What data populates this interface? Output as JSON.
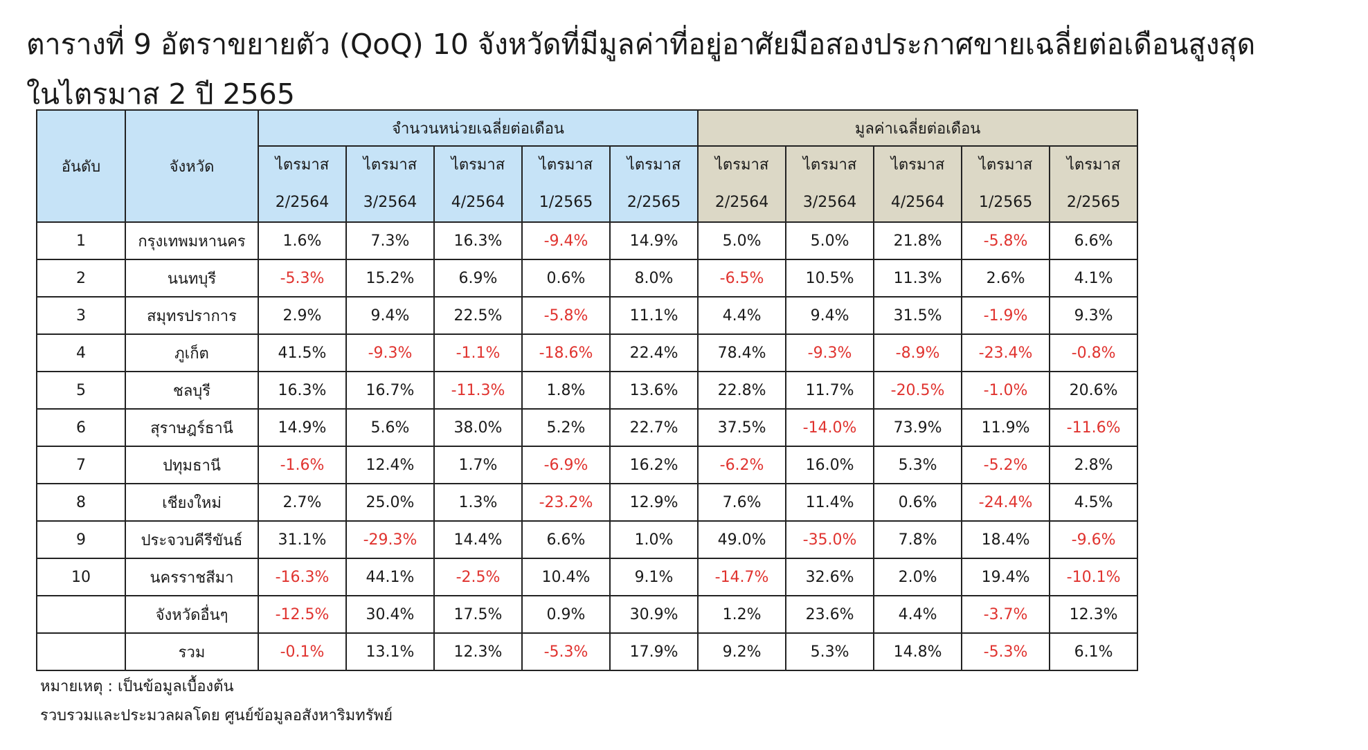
{
  "title": {
    "line1": "ตารางที่ 9 อัตราขยายตัว (QoQ) 10 จังหวัดที่มีมูลค่าที่อยู่อาศัยมือสองประกาศขายเฉลี่ยต่อเดือนสูงสุด",
    "line2": "ในไตรมาส 2 ปี 2565"
  },
  "table": {
    "rank_header": "อันดับ",
    "province_header": "จังหวัด",
    "group_units": "จำนวนหน่วยเฉลี่ยต่อเดือน",
    "group_value": "มูลค่าเฉลี่ยต่อเดือน",
    "quarter_label": "ไตรมาส",
    "quarters": [
      "2/2564",
      "3/2564",
      "4/2564",
      "1/2565",
      "2/2565"
    ],
    "rows": [
      {
        "rank": "1",
        "province": "กรุงเทพมหานคร",
        "units": [
          "1.6%",
          "7.3%",
          "16.3%",
          "-9.4%",
          "14.9%"
        ],
        "value": [
          "5.0%",
          "5.0%",
          "21.8%",
          "-5.8%",
          "6.6%"
        ]
      },
      {
        "rank": "2",
        "province": "นนทบุรี",
        "units": [
          "-5.3%",
          "15.2%",
          "6.9%",
          "0.6%",
          "8.0%"
        ],
        "value": [
          "-6.5%",
          "10.5%",
          "11.3%",
          "2.6%",
          "4.1%"
        ]
      },
      {
        "rank": "3",
        "province": "สมุทรปราการ",
        "units": [
          "2.9%",
          "9.4%",
          "22.5%",
          "-5.8%",
          "11.1%"
        ],
        "value": [
          "4.4%",
          "9.4%",
          "31.5%",
          "-1.9%",
          "9.3%"
        ]
      },
      {
        "rank": "4",
        "province": "ภูเก็ต",
        "units": [
          "41.5%",
          "-9.3%",
          "-1.1%",
          "-18.6%",
          "22.4%"
        ],
        "value": [
          "78.4%",
          "-9.3%",
          "-8.9%",
          "-23.4%",
          "-0.8%"
        ]
      },
      {
        "rank": "5",
        "province": "ชลบุรี",
        "units": [
          "16.3%",
          "16.7%",
          "-11.3%",
          "1.8%",
          "13.6%"
        ],
        "value": [
          "22.8%",
          "11.7%",
          "-20.5%",
          "-1.0%",
          "20.6%"
        ]
      },
      {
        "rank": "6",
        "province": "สุราษฎร์ธานี",
        "units": [
          "14.9%",
          "5.6%",
          "38.0%",
          "5.2%",
          "22.7%"
        ],
        "value": [
          "37.5%",
          "-14.0%",
          "73.9%",
          "11.9%",
          "-11.6%"
        ]
      },
      {
        "rank": "7",
        "province": "ปทุมธานี",
        "units": [
          "-1.6%",
          "12.4%",
          "1.7%",
          "-6.9%",
          "16.2%"
        ],
        "value": [
          "-6.2%",
          "16.0%",
          "5.3%",
          "-5.2%",
          "2.8%"
        ]
      },
      {
        "rank": "8",
        "province": "เชียงใหม่",
        "units": [
          "2.7%",
          "25.0%",
          "1.3%",
          "-23.2%",
          "12.9%"
        ],
        "value": [
          "7.6%",
          "11.4%",
          "0.6%",
          "-24.4%",
          "4.5%"
        ]
      },
      {
        "rank": "9",
        "province": "ประจวบคีรีขันธ์",
        "units": [
          "31.1%",
          "-29.3%",
          "14.4%",
          "6.6%",
          "1.0%"
        ],
        "value": [
          "49.0%",
          "-35.0%",
          "7.8%",
          "18.4%",
          "-9.6%"
        ]
      },
      {
        "rank": "10",
        "province": "นครราชสีมา",
        "units": [
          "-16.3%",
          "44.1%",
          "-2.5%",
          "10.4%",
          "9.1%"
        ],
        "value": [
          "-14.7%",
          "32.6%",
          "2.0%",
          "19.4%",
          "-10.1%"
        ]
      },
      {
        "rank": "",
        "province": "จังหวัดอื่นๆ",
        "units": [
          "-12.5%",
          "30.4%",
          "17.5%",
          "0.9%",
          "30.9%"
        ],
        "value": [
          "1.2%",
          "23.6%",
          "4.4%",
          "-3.7%",
          "12.3%"
        ]
      },
      {
        "rank": "",
        "province": "รวม",
        "units": [
          "-0.1%",
          "13.1%",
          "12.3%",
          "-5.3%",
          "17.9%"
        ],
        "value": [
          "9.2%",
          "5.3%",
          "14.8%",
          "-5.3%",
          "6.1%"
        ]
      }
    ]
  },
  "notes": {
    "remark": "หมายเหตุ : เป็นข้อมูลเบื้องต้น",
    "source": "รวบรวมและประมวลผลโดย ศูนย์ข้อมูลอสังหาริมทรัพย์"
  },
  "colors": {
    "units_header_bg": "#c6e3f7",
    "value_header_bg": "#dcd8c6",
    "negative_text": "#e0332f"
  }
}
